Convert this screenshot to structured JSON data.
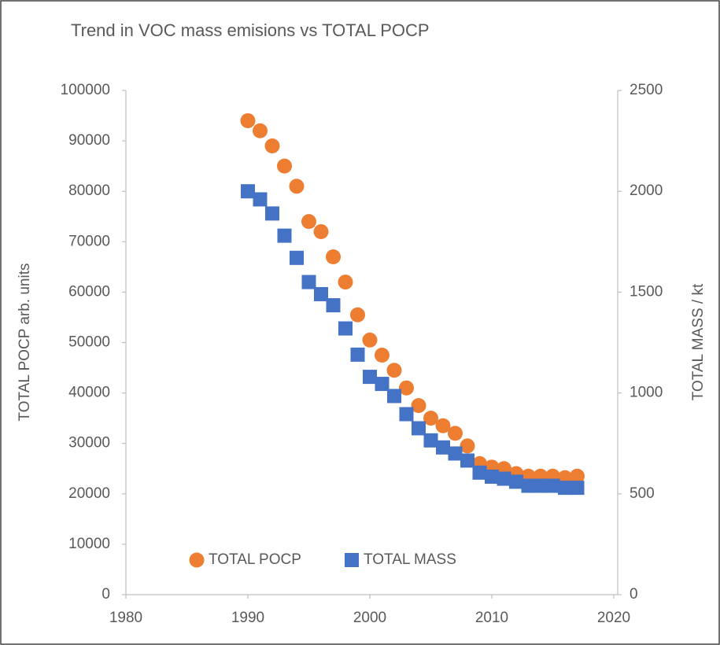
{
  "chart_data": {
    "type": "scatter",
    "title": "Trend in VOC mass emisions vs TOTAL POCP",
    "y_label": "TOTAL POCP arb. units",
    "y2_label": "TOTAL MASS / kt",
    "x": [
      1990,
      1991,
      1992,
      1993,
      1994,
      1995,
      1996,
      1997,
      1998,
      1999,
      2000,
      2001,
      2002,
      2003,
      2004,
      2005,
      2006,
      2007,
      2008,
      2009,
      2010,
      2011,
      2012,
      2013,
      2014,
      2015,
      2016,
      2017
    ],
    "series": [
      {
        "name": "TOTAL POCP",
        "color": "#ed7d31",
        "marker": "circle",
        "values": [
          94000,
          92000,
          89000,
          85000,
          81000,
          74000,
          72000,
          67000,
          62000,
          55500,
          50500,
          47500,
          44500,
          41000,
          37500,
          35000,
          33500,
          32000,
          29500,
          26000,
          25300,
          25000,
          24000,
          23500,
          23500,
          23500,
          23200,
          23500
        ]
      },
      {
        "name": "TOTAL MASS",
        "color": "#4472c4",
        "marker": "square",
        "axis": "y2",
        "values": [
          2000,
          1960,
          1890,
          1780,
          1670,
          1550,
          1490,
          1435,
          1320,
          1190,
          1080,
          1045,
          985,
          895,
          825,
          765,
          730,
          700,
          665,
          605,
          585,
          575,
          560,
          540,
          540,
          540,
          530,
          530
        ]
      }
    ],
    "xlim": [
      1980,
      2020
    ],
    "xticks": [
      1980,
      1990,
      2000,
      2010,
      2020
    ],
    "ylim": [
      0,
      100000
    ],
    "yticks": [
      0,
      10000,
      20000,
      30000,
      40000,
      50000,
      60000,
      70000,
      80000,
      90000,
      100000
    ],
    "y2lim": [
      0,
      2500
    ],
    "y2ticks": [
      0,
      500,
      1000,
      1500,
      2000,
      2500
    ],
    "grid": false,
    "legend": "bottom-left"
  }
}
